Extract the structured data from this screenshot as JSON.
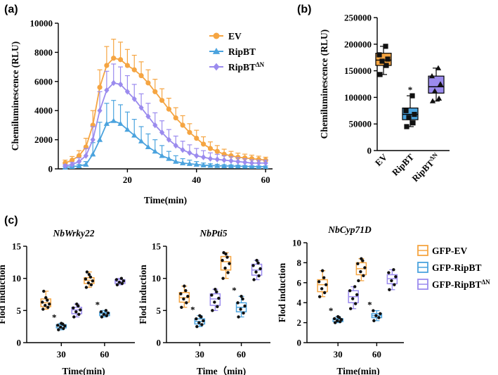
{
  "panel_labels": [
    "(a)",
    "(b)",
    "(c)"
  ],
  "colors": {
    "EV": "#F5A542",
    "RipBT": "#4BA3DE",
    "RipBTdN": "#9B8BEE",
    "dot": "#111111"
  },
  "chart_data": [
    {
      "panel": "(a)",
      "type": "line",
      "title": "",
      "xlabel": "Time(min)",
      "ylabel": "Chemiluminescence (RLU)",
      "xlim": [
        0,
        62
      ],
      "ylim": [
        0,
        10000
      ],
      "xticks": [
        20,
        40,
        60
      ],
      "xtick_labels": [
        "20",
        "40",
        "60"
      ],
      "yticks": [
        0,
        2000,
        4000,
        6000,
        8000,
        10000
      ],
      "ytick_labels": [
        "0",
        "2000",
        "4000",
        "6000",
        "8000",
        "10000"
      ],
      "legend": {
        "position": "top-right",
        "entries": [
          "EV",
          "RipBT",
          "RipBT"
        ],
        "sup": [
          "",
          "",
          "ΔN"
        ]
      },
      "x": [
        2,
        4,
        6,
        8,
        10,
        12,
        14,
        16,
        18,
        20,
        22,
        24,
        26,
        28,
        30,
        32,
        34,
        36,
        38,
        40,
        42,
        44,
        46,
        48,
        50,
        52,
        54,
        56,
        58,
        60
      ],
      "series": [
        {
          "name": "EV",
          "marker": "circle",
          "values": [
            400,
            600,
            900,
            1500,
            3000,
            5600,
            7100,
            7600,
            7500,
            7100,
            6800,
            6400,
            5900,
            5300,
            4700,
            4100,
            3500,
            3000,
            2500,
            2100,
            1700,
            1400,
            1200,
            1000,
            900,
            800,
            750,
            700,
            650,
            600
          ],
          "errors": [
            200,
            250,
            350,
            600,
            1000,
            1200,
            1300,
            1300,
            1200,
            1100,
            1000,
            950,
            900,
            850,
            800,
            750,
            700,
            650,
            600,
            550,
            500,
            450,
            400,
            350,
            300,
            280,
            260,
            240,
            220,
            200
          ]
        },
        {
          "name": "RipBT",
          "marker": "triangle",
          "values": [
            100,
            150,
            200,
            300,
            1000,
            2000,
            3100,
            3300,
            3100,
            2700,
            2300,
            1900,
            1500,
            1200,
            900,
            700,
            500,
            400,
            350,
            300,
            250,
            230,
            210,
            200,
            190,
            180,
            170,
            160,
            150,
            150
          ],
          "errors": [
            50,
            80,
            100,
            200,
            800,
            1200,
            1400,
            1400,
            1300,
            1200,
            1100,
            1000,
            900,
            800,
            700,
            500,
            400,
            300,
            250,
            200,
            150,
            120,
            100,
            90,
            80,
            70,
            60,
            50,
            50,
            50
          ]
        },
        {
          "name": "RipBTΔN",
          "marker": "diamond",
          "values": [
            200,
            300,
            500,
            900,
            2000,
            4000,
            5400,
            5900,
            5800,
            5300,
            4800,
            4200,
            3600,
            3000,
            2500,
            2000,
            1600,
            1300,
            1100,
            900,
            800,
            700,
            650,
            600,
            550,
            500,
            450,
            400,
            400,
            400
          ],
          "errors": [
            100,
            150,
            250,
            500,
            900,
            1300,
            1300,
            1300,
            1200,
            1100,
            1000,
            950,
            900,
            850,
            800,
            700,
            650,
            600,
            550,
            500,
            450,
            400,
            350,
            300,
            280,
            260,
            240,
            220,
            200,
            200
          ]
        }
      ]
    },
    {
      "panel": "(b)",
      "type": "box",
      "xlabel": "",
      "ylabel": "Chemiluminescence (RLU)",
      "ylim": [
        0,
        250000
      ],
      "yticks": [
        0,
        50000,
        100000,
        150000,
        200000,
        250000
      ],
      "ytick_labels": [
        "0",
        "50000",
        "100000",
        "150000",
        "200000",
        "250000"
      ],
      "categories": [
        "EV",
        "RipBT",
        "RipBT"
      ],
      "category_sup": [
        "",
        "",
        "ΔN"
      ],
      "boxes": [
        {
          "name": "EV",
          "min": 143000,
          "q1": 160000,
          "median": 170000,
          "q3": 183000,
          "max": 196000,
          "points": [
            143000,
            160000,
            168000,
            172000,
            180000,
            196000
          ],
          "marker": "square",
          "sig": ""
        },
        {
          "name": "RipBT",
          "min": 45000,
          "q1": 58000,
          "median": 68000,
          "q3": 80000,
          "max": 103000,
          "points": [
            45000,
            52000,
            62000,
            68000,
            75000,
            103000
          ],
          "marker": "square",
          "sig": "*"
        },
        {
          "name": "RipBTΔN",
          "min": 93000,
          "q1": 108000,
          "median": 120000,
          "q3": 140000,
          "max": 155000,
          "points": [
            93000,
            98000,
            112000,
            125000,
            140000,
            155000
          ],
          "marker": "triangle",
          "sig": ""
        }
      ]
    },
    {
      "panel": "(c)",
      "type": "box",
      "title": "NbWrky22",
      "xlabel": "Time(min)",
      "ylabel": "Flod induction",
      "ylim": [
        0,
        15
      ],
      "yticks": [
        0,
        5,
        10,
        15
      ],
      "ytick_labels": [
        "0",
        "5",
        "10",
        "15"
      ],
      "groups": [
        "30",
        "60"
      ],
      "boxes": [
        {
          "group": "30",
          "series": "EV",
          "min": 5.2,
          "q1": 5.6,
          "median": 6.2,
          "q3": 6.8,
          "max": 8.0,
          "points": [
            5.2,
            5.5,
            5.8,
            6.0,
            6.3,
            6.6,
            7.0,
            8.0
          ],
          "sig": ""
        },
        {
          "group": "30",
          "series": "RipBT",
          "min": 2.0,
          "q1": 2.3,
          "median": 2.6,
          "q3": 2.8,
          "max": 3.0,
          "points": [
            2.0,
            2.2,
            2.4,
            2.6,
            2.7,
            2.9,
            3.0
          ],
          "sig": "*"
        },
        {
          "group": "30",
          "series": "RipBTΔN",
          "min": 4.0,
          "q1": 4.5,
          "median": 5.1,
          "q3": 5.5,
          "max": 6.0,
          "points": [
            4.0,
            4.4,
            4.8,
            5.1,
            5.4,
            5.7,
            6.0
          ],
          "sig": ""
        },
        {
          "group": "60",
          "series": "EV",
          "min": 8.6,
          "q1": 9.2,
          "median": 9.7,
          "q3": 10.1,
          "max": 11.0,
          "points": [
            8.6,
            9.0,
            9.3,
            9.6,
            9.9,
            10.2,
            10.6,
            11.0
          ],
          "sig": ""
        },
        {
          "group": "60",
          "series": "RipBT",
          "min": 4.0,
          "q1": 4.2,
          "median": 4.5,
          "q3": 4.7,
          "max": 5.0,
          "points": [
            4.0,
            4.2,
            4.4,
            4.6,
            4.8,
            5.0
          ],
          "sig": "*"
        },
        {
          "group": "60",
          "series": "RipBTΔN",
          "min": 9.0,
          "q1": 9.2,
          "median": 9.5,
          "q3": 9.8,
          "max": 10.0,
          "points": [
            9.0,
            9.2,
            9.4,
            9.6,
            9.8,
            10.0
          ],
          "sig": ""
        }
      ]
    },
    {
      "panel": "(c)",
      "type": "box",
      "title": "NbPti5",
      "xlabel": "Time（min)",
      "ylabel": "Flod induction",
      "ylim": [
        0,
        15
      ],
      "yticks": [
        0,
        5,
        10,
        15
      ],
      "ytick_labels": [
        "0",
        "5",
        "10",
        "15"
      ],
      "groups": [
        "30",
        "60"
      ],
      "boxes": [
        {
          "group": "30",
          "series": "EV",
          "min": 5.5,
          "q1": 6.3,
          "median": 7.0,
          "q3": 7.8,
          "max": 8.8,
          "points": [
            5.5,
            6.2,
            6.8,
            7.2,
            7.6,
            8.1,
            8.8
          ],
          "sig": ""
        },
        {
          "group": "30",
          "series": "RipBT",
          "min": 2.5,
          "q1": 2.9,
          "median": 3.3,
          "q3": 3.7,
          "max": 4.2,
          "points": [
            2.5,
            2.8,
            3.1,
            3.4,
            3.7,
            4.0,
            4.2
          ],
          "sig": "*"
        },
        {
          "group": "30",
          "series": "RipBTΔN",
          "min": 5.0,
          "q1": 5.8,
          "median": 6.8,
          "q3": 7.6,
          "max": 8.3,
          "points": [
            5.0,
            5.6,
            6.3,
            6.9,
            7.4,
            7.9,
            8.3
          ],
          "sig": ""
        },
        {
          "group": "60",
          "series": "EV",
          "min": 10.0,
          "q1": 11.3,
          "median": 12.6,
          "q3": 13.4,
          "max": 14.0,
          "points": [
            10.0,
            10.9,
            11.6,
            12.3,
            12.8,
            13.3,
            13.8,
            14.0
          ],
          "sig": ""
        },
        {
          "group": "60",
          "series": "RipBT",
          "min": 4.0,
          "q1": 4.8,
          "median": 5.5,
          "q3": 6.2,
          "max": 7.2,
          "points": [
            4.0,
            4.6,
            5.2,
            5.7,
            6.2,
            6.8,
            7.2
          ],
          "sig": "*"
        },
        {
          "group": "60",
          "series": "RipBTΔN",
          "min": 9.8,
          "q1": 10.5,
          "median": 11.3,
          "q3": 12.2,
          "max": 12.8,
          "points": [
            9.8,
            10.4,
            11.0,
            11.5,
            12.0,
            12.4,
            12.8
          ],
          "sig": ""
        }
      ]
    },
    {
      "panel": "(c)",
      "type": "box",
      "title": "NbCyp71D",
      "xlabel": "Time(min)",
      "ylabel": "Flod induction",
      "ylim": [
        0,
        10
      ],
      "yticks": [
        0,
        2,
        4,
        6,
        8,
        10
      ],
      "ytick_labels": [
        "0",
        "2",
        "4",
        "6",
        "8",
        "10"
      ],
      "groups": [
        "30",
        "60"
      ],
      "boxes": [
        {
          "group": "30",
          "series": "EV",
          "min": 4.6,
          "q1": 5.1,
          "median": 5.8,
          "q3": 6.3,
          "max": 7.2,
          "points": [
            4.6,
            5.0,
            5.4,
            5.8,
            6.1,
            6.5,
            7.2
          ],
          "sig": ""
        },
        {
          "group": "30",
          "series": "RipBT",
          "min": 2.0,
          "q1": 2.1,
          "median": 2.3,
          "q3": 2.4,
          "max": 2.6,
          "points": [
            2.0,
            2.1,
            2.2,
            2.3,
            2.4,
            2.5,
            2.6
          ],
          "sig": "*"
        },
        {
          "group": "30",
          "series": "RipBTΔN",
          "min": 3.4,
          "q1": 4.0,
          "median": 4.6,
          "q3": 5.2,
          "max": 5.6,
          "points": [
            3.4,
            3.9,
            4.4,
            4.8,
            5.2,
            5.6
          ],
          "sig": ""
        },
        {
          "group": "60",
          "series": "EV",
          "min": 6.2,
          "q1": 6.8,
          "median": 7.4,
          "q3": 8.0,
          "max": 8.4,
          "points": [
            6.2,
            6.7,
            7.1,
            7.5,
            7.9,
            8.2,
            8.4
          ],
          "sig": ""
        },
        {
          "group": "60",
          "series": "RipBT",
          "min": 2.2,
          "q1": 2.5,
          "median": 2.7,
          "q3": 2.9,
          "max": 3.2,
          "points": [
            2.2,
            2.5,
            2.7,
            2.9,
            3.2
          ],
          "sig": "*"
        },
        {
          "group": "60",
          "series": "RipBTΔN",
          "min": 5.3,
          "q1": 5.9,
          "median": 6.4,
          "q3": 6.8,
          "max": 7.3,
          "points": [
            5.3,
            5.8,
            6.2,
            6.6,
            7.0,
            7.3
          ],
          "sig": ""
        }
      ]
    }
  ],
  "legend_c": {
    "entries": [
      "GFP-EV",
      "GFP-RipBT",
      "GFP-RipBT"
    ],
    "sup": [
      "",
      "",
      "ΔN"
    ]
  }
}
